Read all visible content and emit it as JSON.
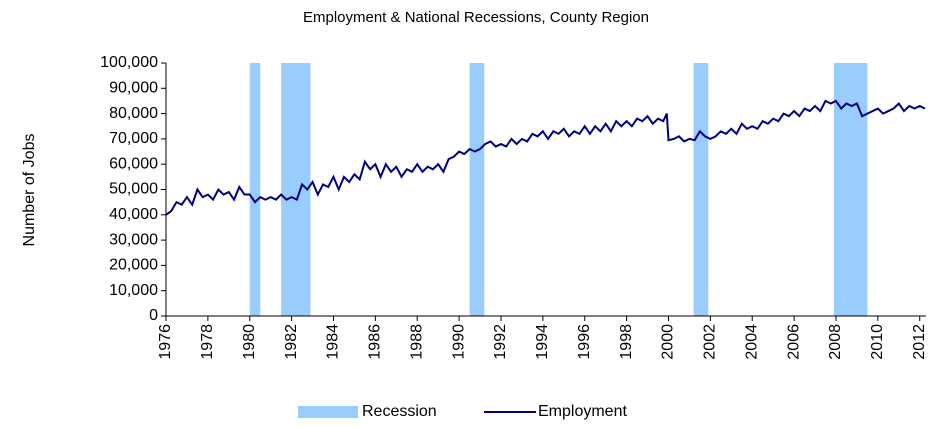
{
  "chart_data": {
    "type": "line",
    "title": "Employment & National Recessions, County Region",
    "ylabel": "Number of Jobs",
    "xlim": [
      1976,
      2012.3
    ],
    "xticks": [
      1976,
      1978,
      1980,
      1982,
      1984,
      1986,
      1988,
      1990,
      1992,
      1994,
      1996,
      1998,
      2000,
      2002,
      2004,
      2006,
      2008,
      2010,
      2012
    ],
    "ylim": [
      0,
      100000
    ],
    "yticks": [
      0,
      {
        "value": 10000,
        "label": "10,000"
      },
      {
        "value": 20000,
        "label": "20,000"
      },
      {
        "value": 30000,
        "label": "30,000"
      },
      {
        "value": 40000,
        "label": "40,000"
      },
      {
        "value": 50000,
        "label": "50,000"
      },
      {
        "value": 60000,
        "label": "60,000"
      },
      {
        "value": 70000,
        "label": "70,000"
      },
      {
        "value": 80000,
        "label": "80,000"
      },
      {
        "value": 90000,
        "label": "90,000"
      },
      {
        "value": 100000,
        "label": "100,000"
      }
    ],
    "recessions": {
      "name": "Recession",
      "color": "#99ccff",
      "periods": [
        [
          1980.0,
          1980.5
        ],
        [
          1981.5,
          1982.9
        ],
        [
          1990.5,
          1991.2
        ],
        [
          2001.2,
          2001.9
        ],
        [
          2007.9,
          2009.5
        ]
      ]
    },
    "series": [
      {
        "name": "Employment",
        "color": "#000080",
        "x": [
          1976,
          1976.25,
          1976.5,
          1976.75,
          1977,
          1977.25,
          1977.5,
          1977.75,
          1978,
          1978.25,
          1978.5,
          1978.75,
          1979,
          1979.25,
          1979.5,
          1979.75,
          1980,
          1980.25,
          1980.5,
          1980.75,
          1981,
          1981.25,
          1981.5,
          1981.75,
          1982,
          1982.25,
          1982.5,
          1982.75,
          1983,
          1983.25,
          1983.5,
          1983.75,
          1984,
          1984.25,
          1984.5,
          1984.75,
          1985,
          1985.25,
          1985.5,
          1985.75,
          1986,
          1986.25,
          1986.5,
          1986.75,
          1987,
          1987.25,
          1987.5,
          1987.75,
          1988,
          1988.25,
          1988.5,
          1988.75,
          1989,
          1989.25,
          1989.5,
          1989.75,
          1990,
          1990.25,
          1990.5,
          1990.75,
          1991,
          1991.25,
          1991.5,
          1991.75,
          1992,
          1992.25,
          1992.5,
          1992.75,
          1993,
          1993.25,
          1993.5,
          1993.75,
          1994,
          1994.25,
          1994.5,
          1994.75,
          1995,
          1995.25,
          1995.5,
          1995.75,
          1996,
          1996.25,
          1996.5,
          1996.75,
          1997,
          1997.25,
          1997.5,
          1997.75,
          1998,
          1998.25,
          1998.5,
          1998.75,
          1999,
          1999.25,
          1999.5,
          1999.75,
          1999.92,
          2000,
          2000.25,
          2000.5,
          2000.75,
          2001,
          2001.25,
          2001.5,
          2001.75,
          2002,
          2002.25,
          2002.5,
          2002.75,
          2003,
          2003.25,
          2003.5,
          2003.75,
          2004,
          2004.25,
          2004.5,
          2004.75,
          2005,
          2005.25,
          2005.5,
          2005.75,
          2006,
          2006.25,
          2006.5,
          2006.75,
          2007,
          2007.25,
          2007.5,
          2007.75,
          2008,
          2008.25,
          2008.5,
          2008.75,
          2009,
          2009.25,
          2009.5,
          2009.75,
          2010,
          2010.25,
          2010.5,
          2010.75,
          2011,
          2011.25,
          2011.5,
          2011.75,
          2012,
          2012.25
        ],
        "values": [
          40000,
          41500,
          45000,
          44000,
          47000,
          44000,
          50000,
          47000,
          48000,
          46000,
          50000,
          48000,
          49000,
          46000,
          51000,
          48000,
          48000,
          45000,
          47000,
          46000,
          47000,
          46000,
          48000,
          46000,
          47000,
          46000,
          52000,
          50000,
          53000,
          48000,
          52000,
          51000,
          55000,
          50000,
          55000,
          53000,
          56000,
          54000,
          61000,
          58000,
          60000,
          55000,
          60000,
          57000,
          59000,
          55000,
          58000,
          57000,
          60000,
          57000,
          59000,
          58000,
          60000,
          57000,
          62000,
          63000,
          65000,
          64000,
          66000,
          65000,
          66000,
          68000,
          69000,
          67000,
          68000,
          67000,
          70000,
          68000,
          70000,
          69000,
          72000,
          71000,
          73000,
          70000,
          73000,
          72000,
          74000,
          71000,
          73000,
          72000,
          75000,
          72000,
          75000,
          73000,
          76000,
          73000,
          77000,
          75000,
          77000,
          75000,
          78000,
          77000,
          79000,
          76000,
          78000,
          77000,
          80000,
          69500,
          70000,
          71000,
          69000,
          70000,
          69500,
          73000,
          71000,
          70000,
          71000,
          73000,
          72000,
          74000,
          72000,
          76000,
          74000,
          75000,
          74000,
          77000,
          76000,
          78000,
          77000,
          80000,
          79000,
          81000,
          79000,
          82000,
          81000,
          83000,
          81000,
          85000,
          84000,
          85000,
          82000,
          84000,
          83000,
          84000,
          79000,
          80000,
          81000,
          82000,
          80000,
          81000,
          82000,
          84000,
          81000,
          83000,
          82000,
          83000,
          82000
        ]
      }
    ]
  }
}
